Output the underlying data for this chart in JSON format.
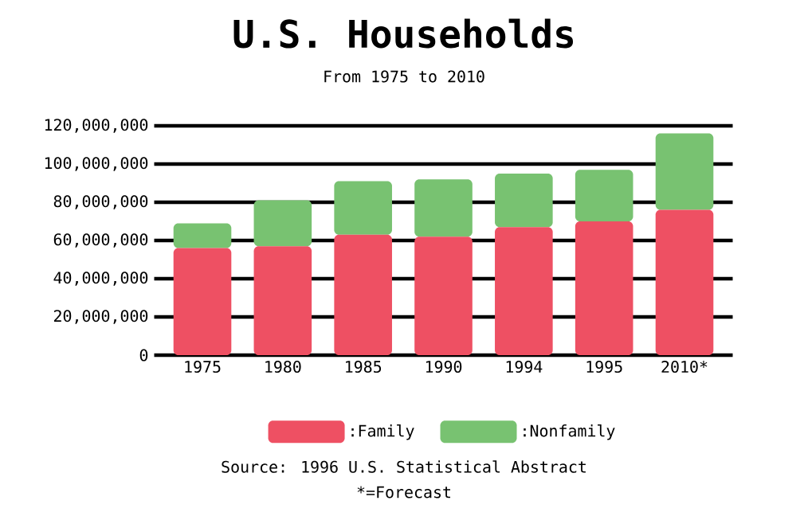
{
  "chart_data": {
    "type": "bar",
    "stacked": true,
    "title": "U.S. Households",
    "subtitle": "From 1975 to 2010",
    "categories": [
      "1975",
      "1980",
      "1985",
      "1990",
      "1994",
      "1995",
      "2010*"
    ],
    "series": [
      {
        "name": ":Family",
        "color": "#ee5063",
        "values": [
          56000000,
          57000000,
          63000000,
          62000000,
          67000000,
          70000000,
          76000000
        ]
      },
      {
        "name": ":Nonfamily",
        "color": "#78c271",
        "values": [
          13000000,
          24000000,
          28000000,
          30000000,
          28000000,
          27000000,
          40000000
        ]
      }
    ],
    "ylim": [
      0,
      120000000
    ],
    "yticks": [
      {
        "value": 0,
        "label": "0"
      },
      {
        "value": 20000000,
        "label": "20,000,000"
      },
      {
        "value": 40000000,
        "label": "40,000,000"
      },
      {
        "value": 60000000,
        "label": "60,000,000"
      },
      {
        "value": 80000000,
        "label": "80,000,000"
      },
      {
        "value": 100000000,
        "label": "100,000,000"
      },
      {
        "value": 120000000,
        "label": "120,000,000"
      }
    ],
    "grid": "y",
    "legend": "bottom",
    "annotations": [
      "Source: 1996 U.S. Statistical Abstract",
      "*=Forecast"
    ]
  }
}
